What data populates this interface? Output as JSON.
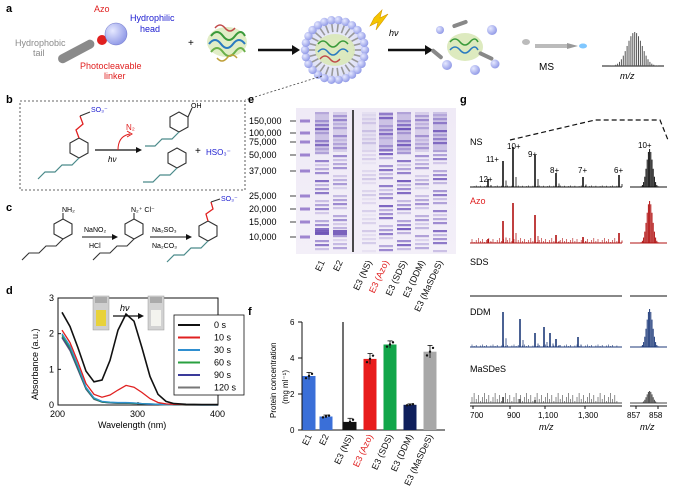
{
  "panels": {
    "a": {
      "label": "a",
      "azo": "Azo",
      "hydrophobic": [
        "Hydrophobic",
        "tail"
      ],
      "hydrophilic": [
        "Hydrophilic",
        "head"
      ],
      "linker": [
        "Photocleavable",
        "linker"
      ],
      "plus": "+",
      "hv": "hν",
      "ms": "MS",
      "mz": "m/z",
      "colors": {
        "azo": "#e02020",
        "hydrophilic": "#1a1ad0",
        "hydrophobic": "#888888",
        "linker": "#e02020"
      }
    },
    "b": {
      "label": "b",
      "n2": "N₂",
      "hv": "hν",
      "so3": "SO₃⁻",
      "oh": "OH",
      "hso3": "HSO₃⁻",
      "plus": "+"
    },
    "c": {
      "label": "c",
      "nh2": "NH₂",
      "reag1": [
        "NaNO₂",
        "HCl"
      ],
      "reag2": [
        "Na₂SO₃",
        "Na₂CO₃"
      ],
      "diazo": "N₂⁺ Cl⁻",
      "so3": "SO₃⁻"
    },
    "d": {
      "label": "d",
      "hv": "hν",
      "ylabel": "Absorbance (a.u.)",
      "xlabel": "Wavelength (nm)",
      "legend": [
        {
          "label": "0 s",
          "color": "#111111"
        },
        {
          "label": "10 s",
          "color": "#e02020"
        },
        {
          "label": "30 s",
          "color": "#2f8fd0"
        },
        {
          "label": "60 s",
          "color": "#2aa040"
        },
        {
          "label": "90 s",
          "color": "#3a3a9a"
        },
        {
          "label": "120 s",
          "color": "#777777"
        }
      ]
    },
    "e": {
      "label": "e",
      "mw": [
        "150,000",
        "100,000",
        "75,000",
        "50,000",
        "37,000",
        "25,000",
        "20,000",
        "15,000",
        "10,000"
      ],
      "lanes": [
        "E1",
        "E2",
        "E3 (NS)",
        "E3 (Azo)",
        "E3 (SDS)",
        "E3 (DDM)",
        "E3 (MaSDeS)"
      ]
    },
    "f": {
      "label": "f",
      "ylabel": [
        "Protein concentration",
        "(mg ml⁻¹)"
      ],
      "categories": [
        "E1",
        "E2",
        "E3 (NS)",
        "E3 (Azo)",
        "E3 (SDS)",
        "E3 (DDM)",
        "E3 (MaSDeS)"
      ]
    },
    "g": {
      "label": "g",
      "rows": [
        "NS",
        "Azo",
        "SDS",
        "DDM",
        "MaSDeS"
      ],
      "charges": [
        "12+",
        "11+",
        "10+",
        "9+",
        "8+",
        "7+",
        "6+",
        "10+"
      ],
      "xticks": [
        "700",
        "900",
        "1,100",
        "1,300",
        "857",
        "858"
      ],
      "xlabel": "m/z"
    }
  },
  "chart_data": [
    {
      "type": "line",
      "panel": "d",
      "xlabel": "Wavelength (nm)",
      "ylabel": "Absorbance (a.u.)",
      "xlim": [
        200,
        400
      ],
      "ylim": [
        0,
        3
      ],
      "xticks": [
        200,
        300,
        400
      ],
      "yticks": [
        0,
        1,
        2,
        3
      ],
      "x": [
        205,
        215,
        225,
        235,
        245,
        255,
        265,
        275,
        285,
        295,
        305,
        315,
        325,
        335,
        345,
        360,
        380,
        400
      ],
      "series": [
        {
          "name": "0 s",
          "values": [
            2.6,
            2.2,
            1.6,
            0.95,
            0.65,
            0.7,
            1.25,
            2.1,
            2.55,
            2.35,
            1.6,
            0.8,
            0.3,
            0.1,
            0.04,
            0.02,
            0.01,
            0.01
          ]
        },
        {
          "name": "10 s",
          "values": [
            2.1,
            1.75,
            1.2,
            0.6,
            0.3,
            0.22,
            0.28,
            0.42,
            0.55,
            0.5,
            0.35,
            0.18,
            0.07,
            0.03,
            0.02,
            0.01,
            0.01,
            0.01
          ]
        },
        {
          "name": "30 s",
          "values": [
            2.0,
            1.65,
            1.1,
            0.5,
            0.2,
            0.1,
            0.08,
            0.07,
            0.07,
            0.06,
            0.04,
            0.03,
            0.02,
            0.01,
            0.01,
            0.01,
            0.0,
            0.0
          ]
        },
        {
          "name": "60 s",
          "values": [
            1.95,
            1.6,
            1.05,
            0.47,
            0.18,
            0.09,
            0.07,
            0.06,
            0.06,
            0.05,
            0.04,
            0.03,
            0.02,
            0.01,
            0.01,
            0.0,
            0.0,
            0.0
          ]
        },
        {
          "name": "90 s",
          "values": [
            1.9,
            1.55,
            1.0,
            0.45,
            0.17,
            0.08,
            0.06,
            0.05,
            0.05,
            0.05,
            0.04,
            0.02,
            0.02,
            0.01,
            0.01,
            0.0,
            0.0,
            0.0
          ]
        },
        {
          "name": "120 s",
          "values": [
            1.88,
            1.52,
            0.98,
            0.44,
            0.16,
            0.08,
            0.06,
            0.05,
            0.05,
            0.04,
            0.03,
            0.02,
            0.02,
            0.01,
            0.0,
            0.0,
            0.0,
            0.0
          ]
        }
      ]
    },
    {
      "type": "bar",
      "panel": "f",
      "ylabel": "Protein concentration (mg ml⁻¹)",
      "ylim": [
        0,
        6
      ],
      "yticks": [
        0,
        2,
        4,
        6
      ],
      "categories": [
        "E1",
        "E2",
        "E3 (NS)",
        "E3 (Azo)",
        "E3 (SDS)",
        "E3 (DDM)",
        "E3 (MaSDeS)"
      ],
      "values": [
        3.0,
        0.75,
        0.45,
        3.95,
        4.75,
        1.4,
        4.35
      ],
      "errors": [
        0.2,
        0.08,
        0.2,
        0.3,
        0.2,
        0.05,
        0.35
      ],
      "colors": [
        "#3a6fd8",
        "#3a6fd8",
        "#111111",
        "#e81c1c",
        "#12a64a",
        "#0f1f5c",
        "#a8a8a8"
      ]
    }
  ]
}
